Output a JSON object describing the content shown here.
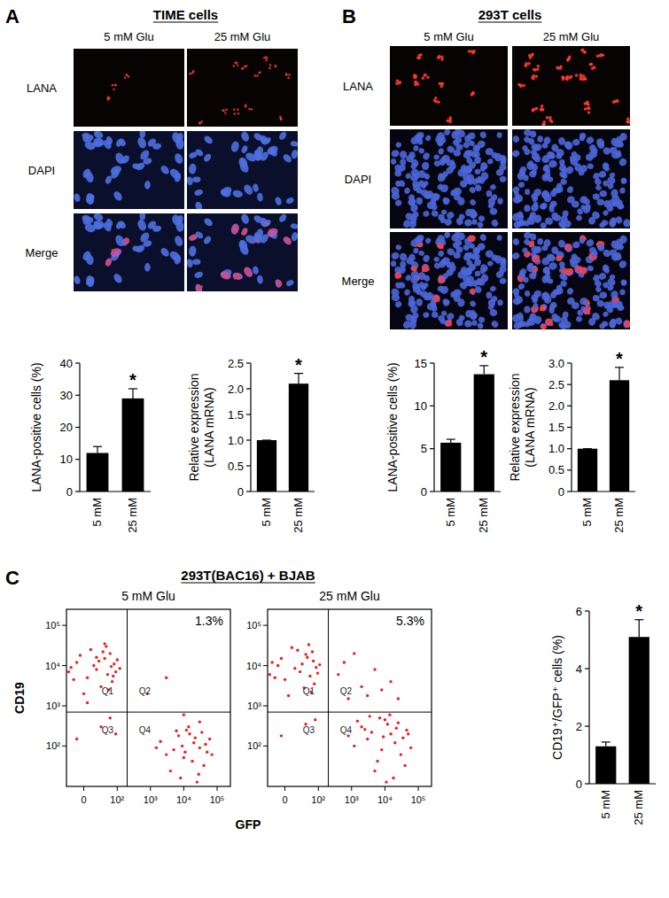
{
  "panels": [
    {
      "label": "A",
      "title": "TIME cells",
      "columns": [
        "5 mM Glu",
        "25 mM Glu"
      ],
      "rows": [
        "LANA",
        "DAPI",
        "Merge"
      ]
    },
    {
      "label": "B",
      "title": "293T cells",
      "columns": [
        "5 mM Glu",
        "25 mM Glu"
      ],
      "rows": [
        "LANA",
        "DAPI",
        "Merge"
      ]
    },
    {
      "label": "C",
      "title": "293T(BAC16) + BJAB"
    }
  ],
  "chart_data": [
    {
      "type": "bar",
      "y_label": [
        "LANA-positive cells (%)"
      ],
      "categories": [
        "5 mM",
        "25 mM"
      ],
      "values": [
        12,
        29
      ],
      "errors": [
        2,
        3
      ],
      "significance": [
        null,
        "*"
      ],
      "color": "#000000",
      "ylim": [
        0,
        40
      ],
      "yticks": [
        0,
        10,
        20,
        30,
        40
      ]
    },
    {
      "type": "bar",
      "y_label": [
        "Relative expression",
        "(LANA mRNA)"
      ],
      "categories": [
        "5 mM",
        "25 mM"
      ],
      "values": [
        1.0,
        2.1
      ],
      "errors": [
        0,
        0.2
      ],
      "significance": [
        null,
        "*"
      ],
      "color": "#000000",
      "ylim": [
        0,
        2.5
      ],
      "yticks": [
        0,
        0.5,
        {
          "value": 1.0,
          "label": "1.0"
        },
        1.5,
        {
          "value": 2.0,
          "label": "2.0"
        },
        2.5
      ]
    },
    {
      "type": "bar",
      "y_label": [
        "LANA-positive cells (%)"
      ],
      "categories": [
        "5 mM",
        "25 mM"
      ],
      "values": [
        5.7,
        13.7
      ],
      "errors": [
        0.4,
        1.0
      ],
      "significance": [
        null,
        "*"
      ],
      "color": "#000000",
      "ylim": [
        0,
        15
      ],
      "yticks": [
        0,
        5,
        10,
        15
      ]
    },
    {
      "type": "bar",
      "y_label": [
        "Relative expression",
        "(LANA mRNA)"
      ],
      "categories": [
        "5 mM",
        "25 mM"
      ],
      "values": [
        1.0,
        2.6
      ],
      "errors": [
        0,
        0.3
      ],
      "significance": [
        null,
        "*"
      ],
      "color": "#000000",
      "ylim": [
        0,
        3.0
      ],
      "yticks": [
        0,
        0.5,
        {
          "value": 1.0,
          "label": "1.0"
        },
        1.5,
        {
          "value": 2.0,
          "label": "2.0"
        },
        2.5,
        {
          "value": 3.0,
          "label": "3.0"
        }
      ]
    },
    {
      "type": "scatter",
      "subtitle": "5 mM Glu",
      "x_label": "GFP",
      "y_label": "CD19",
      "color": "#e8201c",
      "marker": "dot",
      "log": true,
      "x": [
        -10,
        20,
        40,
        5,
        60,
        -20,
        30,
        80,
        10,
        50,
        -5,
        70,
        25,
        90,
        0,
        45,
        15,
        -15,
        35,
        65,
        100,
        55,
        -25,
        20,
        75,
        5,
        40,
        120,
        30,
        -10,
        60,
        90,
        3000,
        800,
        10000,
        20000,
        5000,
        40000,
        15000,
        8000,
        30000,
        60000,
        3000,
        12000,
        25000,
        7000,
        50000,
        18000,
        2000,
        35000,
        9000,
        70000,
        4000,
        22000,
        14000,
        45000,
        6000,
        28000,
        11000,
        1500,
        10000,
        30000
      ],
      "y": [
        12000,
        8000,
        15000,
        5000,
        20000,
        9000,
        3000,
        11000,
        25000,
        6000,
        18000,
        4000,
        13000,
        7000,
        2000,
        30000,
        10000,
        4500,
        22000,
        9500,
        14000,
        2500,
        7000,
        16000,
        5500,
        1200,
        35000,
        8500,
        300,
        150,
        500,
        200,
        5000,
        2000,
        50,
        120,
        80,
        30,
        200,
        10,
        90,
        150,
        60,
        250,
        5,
        180,
        70,
        40,
        130,
        220,
        100,
        60,
        20,
        160,
        300,
        110,
        240,
        15,
        70,
        90,
        600,
        400
      ],
      "xlim": [
        -30,
        250000
      ],
      "ylim": [
        0,
        250000
      ],
      "xticks": [
        0,
        {
          "value": 100,
          "label": "10²"
        },
        {
          "value": 1000,
          "label": "10³"
        },
        {
          "value": 10000,
          "label": "10⁴"
        },
        {
          "value": 100000,
          "label": "10⁵"
        }
      ],
      "yticks": [
        {
          "value": 100,
          "label": "10²"
        },
        {
          "value": 1000,
          "label": "10³"
        },
        {
          "value": 10000,
          "label": "10⁴"
        },
        {
          "value": 100000,
          "label": "10⁵"
        }
      ],
      "gates": {
        "x": 200,
        "y": 700
      },
      "quadrants": [
        "Q1",
        "Q2",
        "Q3",
        "Q4"
      ],
      "annotation": "1.3%"
    },
    {
      "type": "scatter",
      "subtitle": "25 mM Glu",
      "color": "#e8201c",
      "marker": "dot",
      "log": true,
      "x": [
        -10,
        25,
        45,
        0,
        65,
        -20,
        35,
        85,
        10,
        55,
        -5,
        75,
        30,
        95,
        5,
        50,
        15,
        -15,
        40,
        70,
        110,
        60,
        -25,
        20,
        40,
        -5,
        80,
        2000,
        5000,
        800,
        15000,
        1200,
        400,
        3000,
        8000,
        25000,
        600,
        8000,
        15000,
        3000,
        30000,
        12000,
        5000,
        20000,
        45000,
        2000,
        10000,
        18000,
        4000,
        35000,
        7000,
        1200,
        25000,
        6000,
        60000,
        2500,
        14000,
        9000,
        40000,
        1500,
        22000,
        3500,
        11000,
        50000,
        800
      ],
      "y": [
        10000,
        7000,
        16000,
        4500,
        22000,
        12000,
        2800,
        9000,
        28000,
        5500,
        15000,
        3500,
        11000,
        6500,
        1800,
        33000,
        8500,
        5000,
        19000,
        13000,
        10500,
        2200,
        6000,
        24000,
        350,
        180,
        450,
        3000,
        8000,
        1500,
        4000,
        20000,
        6000,
        1800,
        2500,
        1500,
        12000,
        80,
        200,
        150,
        60,
        350,
        20,
        120,
        250,
        300,
        450,
        10,
        220,
        160,
        500,
        100,
        380,
        40,
        90,
        260,
        600,
        170,
        30,
        420,
        280,
        550,
        5,
        200,
        180
      ],
      "xlim": [
        -30,
        250000
      ],
      "ylim": [
        0,
        250000
      ],
      "xticks": [
        0,
        {
          "value": 100,
          "label": "10²"
        },
        {
          "value": 1000,
          "label": "10³"
        },
        {
          "value": 10000,
          "label": "10⁴"
        },
        {
          "value": 100000,
          "label": "10⁵"
        }
      ],
      "yticks": [
        {
          "value": 100,
          "label": "10²"
        },
        {
          "value": 1000,
          "label": "10³"
        },
        {
          "value": 10000,
          "label": "10⁴"
        },
        {
          "value": 100000,
          "label": "10⁵"
        }
      ],
      "gates": {
        "x": 200,
        "y": 700
      },
      "quadrants": [
        "Q1",
        "Q2",
        "Q3",
        "Q4"
      ],
      "annotation": "5.3%"
    },
    {
      "type": "bar",
      "y_label": [
        "CD19⁺/GFP⁺ cells (%)"
      ],
      "categories": [
        "5 mM",
        "25 mM"
      ],
      "values": [
        1.3,
        5.1
      ],
      "errors": [
        0.15,
        0.6
      ],
      "significance": [
        null,
        "*"
      ],
      "color": "#000000",
      "ylim": [
        0,
        6
      ],
      "yticks": [
        0,
        2,
        4,
        6
      ]
    }
  ]
}
